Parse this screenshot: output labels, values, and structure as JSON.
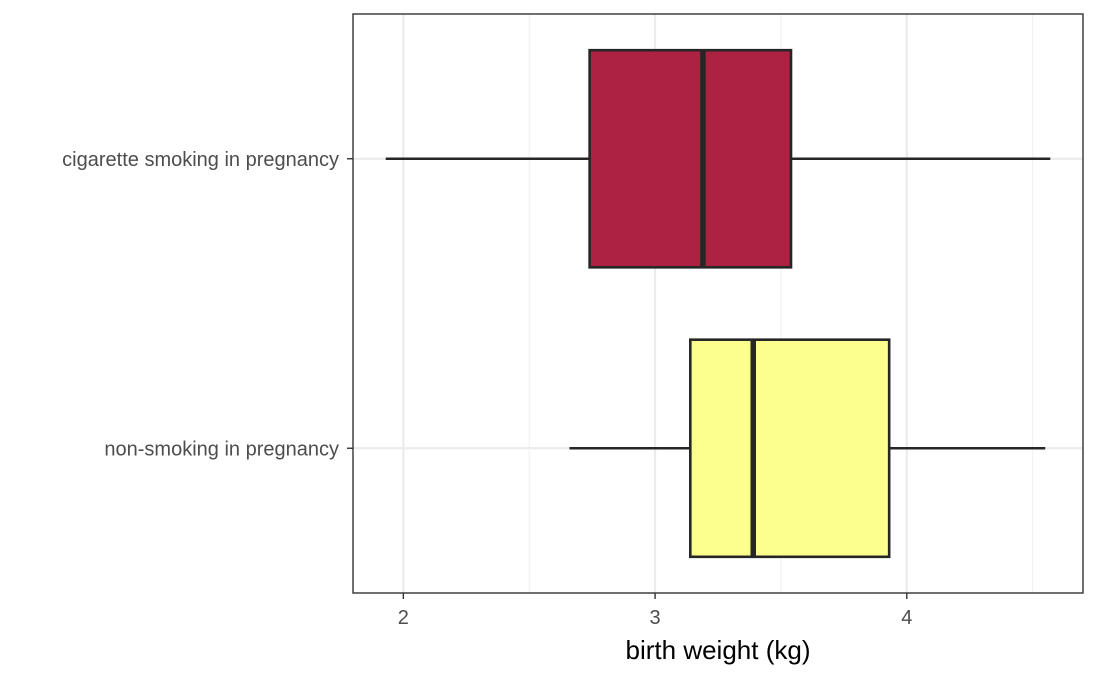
{
  "chart_data": {
    "type": "boxplot",
    "orientation": "horizontal",
    "title": "",
    "xlabel": "birth weight (kg)",
    "ylabel": "",
    "xlim": [
      1.8,
      4.7
    ],
    "x_ticks": [
      2,
      3,
      4
    ],
    "x_tick_labels": [
      "2",
      "3",
      "4"
    ],
    "x_minor_gridlines": [
      2.5,
      3.5,
      4.5
    ],
    "grid": true,
    "legend": "none",
    "categories": [
      "cigarette smoking in pregnancy",
      "non-smoking in pregnancy"
    ],
    "series": [
      {
        "category": "cigarette smoking in pregnancy",
        "whisker_low": 1.93,
        "q1": 2.74,
        "median": 3.19,
        "q3": 3.54,
        "whisker_high": 4.57,
        "fill": "#AD2242"
      },
      {
        "category": "non-smoking in pregnancy",
        "whisker_low": 2.66,
        "q1": 3.14,
        "median": 3.39,
        "q3": 3.93,
        "whisker_high": 4.55,
        "fill": "#FCFF8E"
      }
    ],
    "colors": {
      "background": "#FFFFFF",
      "panel_border": "#333333",
      "grid_major": "#EBEBEB",
      "grid_minor": "#F2F2F2",
      "box_outline": "#262626"
    }
  }
}
